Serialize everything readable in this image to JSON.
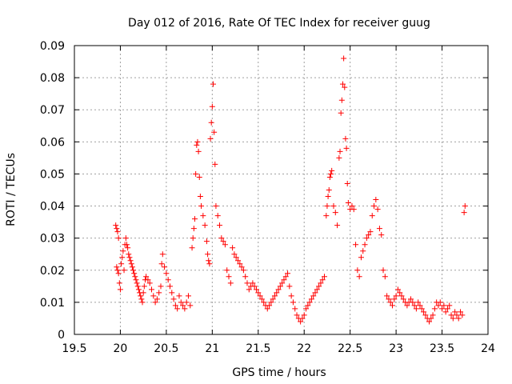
{
  "chart_data": {
    "type": "scatter",
    "title": "Day 012 of 2016, Rate Of TEC Index for receiver guug",
    "xlabel": "GPS time / hours",
    "ylabel": "ROTI / TECUs",
    "xlim": [
      19.5,
      24
    ],
    "ylim": [
      0,
      0.09
    ],
    "xticks": [
      "19.5",
      "20",
      "20.5",
      "21",
      "21.5",
      "22",
      "22.5",
      "23",
      "23.5",
      "24"
    ],
    "yticks": [
      "0",
      "0.01",
      "0.02",
      "0.03",
      "0.04",
      "0.05",
      "0.06",
      "0.07",
      "0.08",
      "0.09"
    ],
    "grid": true,
    "marker": "+",
    "color": "#ff0000",
    "series": [
      {
        "points": [
          [
            19.95,
            0.034
          ],
          [
            19.96,
            0.033
          ],
          [
            19.97,
            0.032
          ],
          [
            19.98,
            0.03
          ],
          [
            19.96,
            0.021
          ],
          [
            19.97,
            0.02
          ],
          [
            19.98,
            0.019
          ],
          [
            19.99,
            0.016
          ],
          [
            20.0,
            0.014
          ],
          [
            20.01,
            0.022
          ],
          [
            20.02,
            0.024
          ],
          [
            20.03,
            0.026
          ],
          [
            20.04,
            0.02
          ],
          [
            20.05,
            0.028
          ],
          [
            20.06,
            0.03
          ],
          [
            20.07,
            0.028
          ],
          [
            20.08,
            0.027
          ],
          [
            20.09,
            0.025
          ],
          [
            20.1,
            0.024
          ],
          [
            20.11,
            0.023
          ],
          [
            20.12,
            0.022
          ],
          [
            20.13,
            0.021
          ],
          [
            20.14,
            0.02
          ],
          [
            20.15,
            0.019
          ],
          [
            20.16,
            0.018
          ],
          [
            20.17,
            0.017
          ],
          [
            20.18,
            0.016
          ],
          [
            20.19,
            0.015
          ],
          [
            20.2,
            0.014
          ],
          [
            20.21,
            0.013
          ],
          [
            20.22,
            0.012
          ],
          [
            20.23,
            0.011
          ],
          [
            20.24,
            0.01
          ],
          [
            20.25,
            0.013
          ],
          [
            20.26,
            0.015
          ],
          [
            20.27,
            0.017
          ],
          [
            20.28,
            0.018
          ],
          [
            20.3,
            0.017
          ],
          [
            20.32,
            0.016
          ],
          [
            20.34,
            0.014
          ],
          [
            20.36,
            0.012
          ],
          [
            20.38,
            0.01
          ],
          [
            20.4,
            0.011
          ],
          [
            20.42,
            0.013
          ],
          [
            20.44,
            0.015
          ],
          [
            20.45,
            0.022
          ],
          [
            20.46,
            0.025
          ],
          [
            20.48,
            0.021
          ],
          [
            20.5,
            0.019
          ],
          [
            20.52,
            0.017
          ],
          [
            20.54,
            0.015
          ],
          [
            20.56,
            0.013
          ],
          [
            20.58,
            0.011
          ],
          [
            20.6,
            0.009
          ],
          [
            20.62,
            0.008
          ],
          [
            20.64,
            0.012
          ],
          [
            20.66,
            0.01
          ],
          [
            20.68,
            0.009
          ],
          [
            20.7,
            0.008
          ],
          [
            20.72,
            0.01
          ],
          [
            20.74,
            0.012
          ],
          [
            20.76,
            0.009
          ],
          [
            20.78,
            0.027
          ],
          [
            20.79,
            0.03
          ],
          [
            20.8,
            0.033
          ],
          [
            20.81,
            0.036
          ],
          [
            20.82,
            0.05
          ],
          [
            20.83,
            0.059
          ],
          [
            20.84,
            0.06
          ],
          [
            20.85,
            0.057
          ],
          [
            20.86,
            0.049
          ],
          [
            20.87,
            0.043
          ],
          [
            20.88,
            0.04
          ],
          [
            20.9,
            0.037
          ],
          [
            20.92,
            0.034
          ],
          [
            20.94,
            0.029
          ],
          [
            20.95,
            0.025
          ],
          [
            20.96,
            0.023
          ],
          [
            20.97,
            0.022
          ],
          [
            20.98,
            0.061
          ],
          [
            20.99,
            0.066
          ],
          [
            21.0,
            0.071
          ],
          [
            21.01,
            0.078
          ],
          [
            21.02,
            0.063
          ],
          [
            21.03,
            0.053
          ],
          [
            21.04,
            0.04
          ],
          [
            21.06,
            0.037
          ],
          [
            21.08,
            0.034
          ],
          [
            21.1,
            0.03
          ],
          [
            21.12,
            0.029
          ],
          [
            21.14,
            0.028
          ],
          [
            21.16,
            0.02
          ],
          [
            21.18,
            0.018
          ],
          [
            21.2,
            0.016
          ],
          [
            21.22,
            0.027
          ],
          [
            21.24,
            0.025
          ],
          [
            21.26,
            0.024
          ],
          [
            21.28,
            0.023
          ],
          [
            21.3,
            0.022
          ],
          [
            21.32,
            0.021
          ],
          [
            21.34,
            0.02
          ],
          [
            21.36,
            0.018
          ],
          [
            21.38,
            0.016
          ],
          [
            21.4,
            0.014
          ],
          [
            21.42,
            0.015
          ],
          [
            21.44,
            0.016
          ],
          [
            21.46,
            0.015
          ],
          [
            21.48,
            0.014
          ],
          [
            21.5,
            0.013
          ],
          [
            21.52,
            0.012
          ],
          [
            21.54,
            0.011
          ],
          [
            21.56,
            0.01
          ],
          [
            21.58,
            0.009
          ],
          [
            21.6,
            0.008
          ],
          [
            21.62,
            0.009
          ],
          [
            21.64,
            0.01
          ],
          [
            21.66,
            0.011
          ],
          [
            21.68,
            0.012
          ],
          [
            21.7,
            0.013
          ],
          [
            21.72,
            0.014
          ],
          [
            21.74,
            0.015
          ],
          [
            21.76,
            0.016
          ],
          [
            21.78,
            0.017
          ],
          [
            21.8,
            0.018
          ],
          [
            21.82,
            0.019
          ],
          [
            21.84,
            0.015
          ],
          [
            21.86,
            0.012
          ],
          [
            21.88,
            0.01
          ],
          [
            21.9,
            0.008
          ],
          [
            21.92,
            0.006
          ],
          [
            21.94,
            0.005
          ],
          [
            21.96,
            0.004
          ],
          [
            21.98,
            0.005
          ],
          [
            22.0,
            0.006
          ],
          [
            22.02,
            0.008
          ],
          [
            22.04,
            0.009
          ],
          [
            22.06,
            0.01
          ],
          [
            22.08,
            0.011
          ],
          [
            22.1,
            0.012
          ],
          [
            22.12,
            0.013
          ],
          [
            22.14,
            0.014
          ],
          [
            22.16,
            0.015
          ],
          [
            22.18,
            0.016
          ],
          [
            22.2,
            0.017
          ],
          [
            22.22,
            0.018
          ],
          [
            22.24,
            0.037
          ],
          [
            22.25,
            0.04
          ],
          [
            22.26,
            0.043
          ],
          [
            22.27,
            0.045
          ],
          [
            22.28,
            0.049
          ],
          [
            22.29,
            0.05
          ],
          [
            22.3,
            0.051
          ],
          [
            22.32,
            0.04
          ],
          [
            22.34,
            0.038
          ],
          [
            22.36,
            0.034
          ],
          [
            22.38,
            0.055
          ],
          [
            22.39,
            0.057
          ],
          [
            22.4,
            0.069
          ],
          [
            22.41,
            0.073
          ],
          [
            22.42,
            0.078
          ],
          [
            22.43,
            0.086
          ],
          [
            22.44,
            0.077
          ],
          [
            22.45,
            0.061
          ],
          [
            22.46,
            0.058
          ],
          [
            22.47,
            0.047
          ],
          [
            22.48,
            0.041
          ],
          [
            22.5,
            0.039
          ],
          [
            22.52,
            0.04
          ],
          [
            22.54,
            0.039
          ],
          [
            22.56,
            0.028
          ],
          [
            22.58,
            0.02
          ],
          [
            22.6,
            0.018
          ],
          [
            22.62,
            0.024
          ],
          [
            22.64,
            0.026
          ],
          [
            22.66,
            0.028
          ],
          [
            22.68,
            0.03
          ],
          [
            22.7,
            0.031
          ],
          [
            22.72,
            0.032
          ],
          [
            22.74,
            0.037
          ],
          [
            22.76,
            0.04
          ],
          [
            22.78,
            0.042
          ],
          [
            22.8,
            0.039
          ],
          [
            22.82,
            0.033
          ],
          [
            22.84,
            0.031
          ],
          [
            22.86,
            0.02
          ],
          [
            22.88,
            0.018
          ],
          [
            22.9,
            0.012
          ],
          [
            22.92,
            0.011
          ],
          [
            22.94,
            0.01
          ],
          [
            22.96,
            0.009
          ],
          [
            22.98,
            0.011
          ],
          [
            23.0,
            0.012
          ],
          [
            23.02,
            0.014
          ],
          [
            23.04,
            0.013
          ],
          [
            23.06,
            0.012
          ],
          [
            23.08,
            0.011
          ],
          [
            23.1,
            0.01
          ],
          [
            23.12,
            0.009
          ],
          [
            23.14,
            0.01
          ],
          [
            23.16,
            0.011
          ],
          [
            23.18,
            0.01
          ],
          [
            23.2,
            0.009
          ],
          [
            23.22,
            0.008
          ],
          [
            23.24,
            0.01
          ],
          [
            23.26,
            0.009
          ],
          [
            23.28,
            0.008
          ],
          [
            23.3,
            0.007
          ],
          [
            23.32,
            0.006
          ],
          [
            23.34,
            0.005
          ],
          [
            23.36,
            0.004
          ],
          [
            23.38,
            0.005
          ],
          [
            23.4,
            0.006
          ],
          [
            23.42,
            0.008
          ],
          [
            23.44,
            0.01
          ],
          [
            23.46,
            0.009
          ],
          [
            23.48,
            0.01
          ],
          [
            23.5,
            0.008
          ],
          [
            23.52,
            0.009
          ],
          [
            23.54,
            0.007
          ],
          [
            23.56,
            0.008
          ],
          [
            23.58,
            0.009
          ],
          [
            23.6,
            0.006
          ],
          [
            23.62,
            0.005
          ],
          [
            23.64,
            0.007
          ],
          [
            23.66,
            0.006
          ],
          [
            23.68,
            0.005
          ],
          [
            23.7,
            0.007
          ],
          [
            23.72,
            0.006
          ],
          [
            23.74,
            0.038
          ],
          [
            23.75,
            0.04
          ]
        ]
      }
    ]
  }
}
